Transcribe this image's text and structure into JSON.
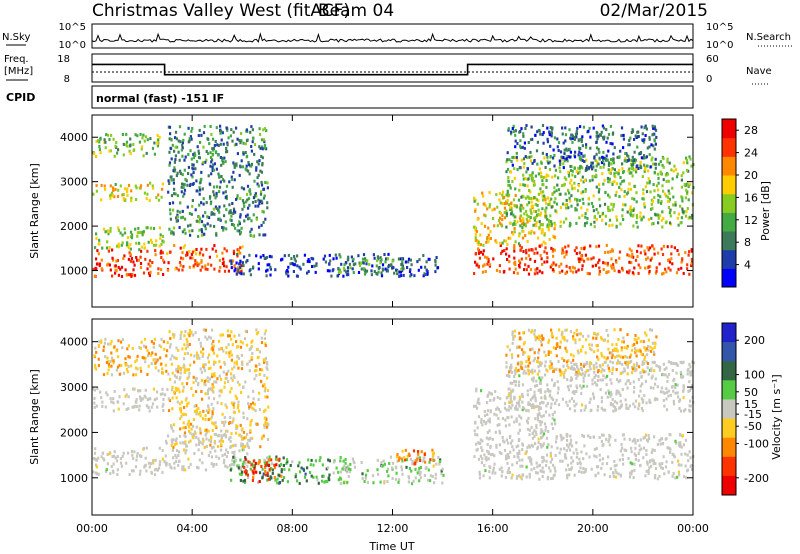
{
  "header": {
    "station": "Christmas Valley West (fitACF)",
    "beam": "Beam 04",
    "date": "02/Mar/2015"
  },
  "strips": {
    "noise": {
      "left_label": "N.Sky",
      "right_label": "N.Search",
      "left_ticks": [
        "10^5",
        "10^0"
      ],
      "right_ticks": [
        "10^5",
        "10^0"
      ]
    },
    "freq": {
      "left_label_line1": "Freq.",
      "left_label_line2": "[MHz]",
      "right_label": "Nave",
      "left_ticks": [
        "18",
        "8"
      ],
      "right_ticks": [
        "60",
        "0"
      ]
    },
    "cpid": {
      "label": "CPID",
      "text": "normal (fast) -151 IF"
    }
  },
  "panels": {
    "ylabel": "Slant Range [km]",
    "xlabel": "Time UT",
    "power_colorbar_label": "Power [dB]",
    "velocity_colorbar_label": "Velocity [m s⁻¹]"
  },
  "chart_data": [
    {
      "type": "line",
      "name": "frequency",
      "x_hours": [
        0,
        2.9,
        2.9,
        15.0,
        15.0,
        24
      ],
      "y_mhz": [
        14.3,
        14.3,
        10.6,
        10.6,
        14.3,
        14.3
      ],
      "ylim": [
        8,
        18
      ],
      "xlim": [
        0,
        24
      ]
    },
    {
      "type": "heatmap",
      "name": "power",
      "title": "",
      "xlabel": "Time UT",
      "ylabel": "Slant Range [km]",
      "xticks": [
        "00:00",
        "04:00",
        "08:00",
        "12:00",
        "16:00",
        "20:00",
        "00:00"
      ],
      "xlim_hours": [
        0,
        24
      ],
      "yticks": [
        1000,
        2000,
        3000,
        4000
      ],
      "ylim_km": [
        180,
        4500
      ],
      "colorbar": {
        "label": "Power [dB]",
        "ticks": [
          4,
          8,
          12,
          16,
          20,
          24,
          28
        ],
        "range": [
          0,
          30
        ],
        "colors": [
          "#0000ff",
          "#1e3caa",
          "#3d7a5a",
          "#44aa44",
          "#88cc22",
          "#ffcc00",
          "#ff8800",
          "#ff3300",
          "#ee0000"
        ]
      },
      "regions": [
        {
          "t": [
            0.0,
            2.9
          ],
          "r": [
            900,
            1500
          ],
          "level": 26
        },
        {
          "t": [
            0.0,
            3.0
          ],
          "r": [
            1500,
            2000
          ],
          "level": 15
        },
        {
          "t": [
            0.0,
            2.8
          ],
          "r": [
            2600,
            3000
          ],
          "level": 18
        },
        {
          "t": [
            0.0,
            2.7
          ],
          "r": [
            3600,
            4100
          ],
          "level": 14
        },
        {
          "t": [
            2.9,
            6.0
          ],
          "r": [
            1000,
            1600
          ],
          "level": 24
        },
        {
          "t": [
            3.0,
            7.0
          ],
          "r": [
            1800,
            4300
          ],
          "level": 9
        },
        {
          "t": [
            5.5,
            13.8
          ],
          "r": [
            900,
            1400
          ],
          "level": 5
        },
        {
          "t": [
            9.8,
            12.4
          ],
          "r": [
            950,
            1350
          ],
          "level": 11
        },
        {
          "t": [
            15.2,
            24.0
          ],
          "r": [
            950,
            1600
          ],
          "level": 25
        },
        {
          "t": [
            15.2,
            18.5
          ],
          "r": [
            1600,
            2800
          ],
          "level": 18
        },
        {
          "t": [
            16.5,
            24.0
          ],
          "r": [
            2000,
            3600
          ],
          "level": 14
        },
        {
          "t": [
            16.5,
            22.5
          ],
          "r": [
            3300,
            4300
          ],
          "level": 7
        }
      ]
    },
    {
      "type": "heatmap",
      "name": "velocity",
      "title": "",
      "xlabel": "Time UT",
      "ylabel": "Slant Range [km]",
      "xticks": [
        "00:00",
        "04:00",
        "08:00",
        "12:00",
        "16:00",
        "20:00",
        "00:00"
      ],
      "xlim_hours": [
        0,
        24
      ],
      "yticks": [
        1000,
        2000,
        3000,
        4000
      ],
      "ylim_km": [
        180,
        4500
      ],
      "colorbar": {
        "label": "Velocity [m s⁻¹]",
        "ticks": [
          200,
          100,
          50,
          15,
          -15,
          -50,
          -100,
          -200
        ],
        "range": [
          -250,
          250
        ],
        "colors": [
          "#2222cc",
          "#3355aa",
          "#336644",
          "#55cc44",
          "#c8c8c0",
          "#ffcc22",
          "#ff8800",
          "#ff3300",
          "#ee0000"
        ]
      },
      "regions": [
        {
          "t": [
            0.0,
            2.9
          ],
          "r": [
            1100,
            1700
          ],
          "class": "ground"
        },
        {
          "t": [
            2.9,
            6.2
          ],
          "r": [
            1200,
            2000
          ],
          "class": "ground"
        },
        {
          "t": [
            0.0,
            3.0
          ],
          "r": [
            2500,
            3000
          ],
          "class": "ground"
        },
        {
          "t": [
            0.0,
            3.0
          ],
          "r": [
            3300,
            4100
          ],
          "level": -60
        },
        {
          "t": [
            3.0,
            7.0
          ],
          "r": [
            1700,
            4300
          ],
          "level": -40
        },
        {
          "t": [
            5.5,
            9.5
          ],
          "r": [
            900,
            1500
          ],
          "level": 80
        },
        {
          "t": [
            6.0,
            7.6
          ],
          "r": [
            950,
            1450
          ],
          "level": -160
        },
        {
          "t": [
            9.5,
            14.0
          ],
          "r": [
            900,
            1500
          ],
          "level": 30
        },
        {
          "t": [
            12.0,
            13.7
          ],
          "r": [
            1300,
            1650
          ],
          "level": -120
        },
        {
          "t": [
            15.2,
            24.0
          ],
          "r": [
            1000,
            2000
          ],
          "class": "ground"
        },
        {
          "t": [
            15.2,
            18.5
          ],
          "r": [
            2000,
            3000
          ],
          "class": "ground"
        },
        {
          "t": [
            16.5,
            24.0
          ],
          "r": [
            2500,
            3600
          ],
          "class": "ground"
        },
        {
          "t": [
            16.5,
            22.5
          ],
          "r": [
            3300,
            4300
          ],
          "level": -60
        }
      ]
    }
  ]
}
